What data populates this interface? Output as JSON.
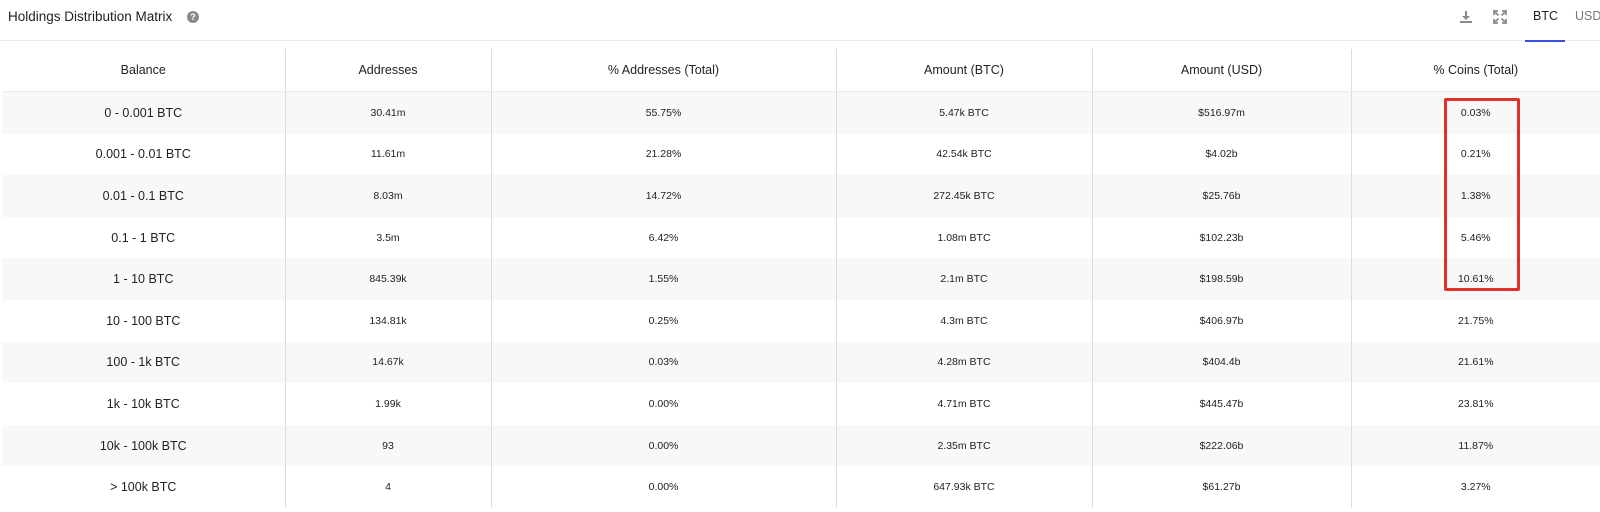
{
  "header": {
    "title": "Holdings Distribution Matrix",
    "help_icon": "question-circle-icon",
    "tools": [
      "download-icon",
      "expand-icon"
    ],
    "unit_tabs": [
      {
        "label": "BTC",
        "active": true
      },
      {
        "label": "USD",
        "active": false
      }
    ],
    "accent_color": "#3b4ee0"
  },
  "table": {
    "columns": [
      "Balance",
      "Addresses",
      "% Addresses (Total)",
      "Amount (BTC)",
      "Amount (USD)",
      "% Coins (Total)"
    ],
    "rows": [
      [
        "0 - 0.001 BTC",
        "30.41m",
        "55.75%",
        "5.47k BTC",
        "$516.97m",
        "0.03%"
      ],
      [
        "0.001 - 0.01 BTC",
        "11.61m",
        "21.28%",
        "42.54k BTC",
        "$4.02b",
        "0.21%"
      ],
      [
        "0.01 - 0.1 BTC",
        "8.03m",
        "14.72%",
        "272.45k BTC",
        "$25.76b",
        "1.38%"
      ],
      [
        "0.1 - 1 BTC",
        "3.5m",
        "6.42%",
        "1.08m BTC",
        "$102.23b",
        "5.46%"
      ],
      [
        "1 - 10 BTC",
        "845.39k",
        "1.55%",
        "2.1m BTC",
        "$198.59b",
        "10.61%"
      ],
      [
        "10 - 100 BTC",
        "134.81k",
        "0.25%",
        "4.3m BTC",
        "$406.97b",
        "21.75%"
      ],
      [
        "100 - 1k BTC",
        "14.67k",
        "0.03%",
        "4.28m BTC",
        "$404.4b",
        "21.61%"
      ],
      [
        "1k - 10k BTC",
        "1.99k",
        "0.00%",
        "4.71m BTC",
        "$445.47b",
        "23.81%"
      ],
      [
        "10k - 100k BTC",
        "93",
        "0.00%",
        "2.35m BTC",
        "$222.06b",
        "11.87%"
      ],
      [
        "> 100k BTC",
        "4",
        "0.00%",
        "647.93k BTC",
        "$61.27b",
        "3.27%"
      ]
    ]
  },
  "annotation": {
    "highlight_color": "#e0302a"
  }
}
